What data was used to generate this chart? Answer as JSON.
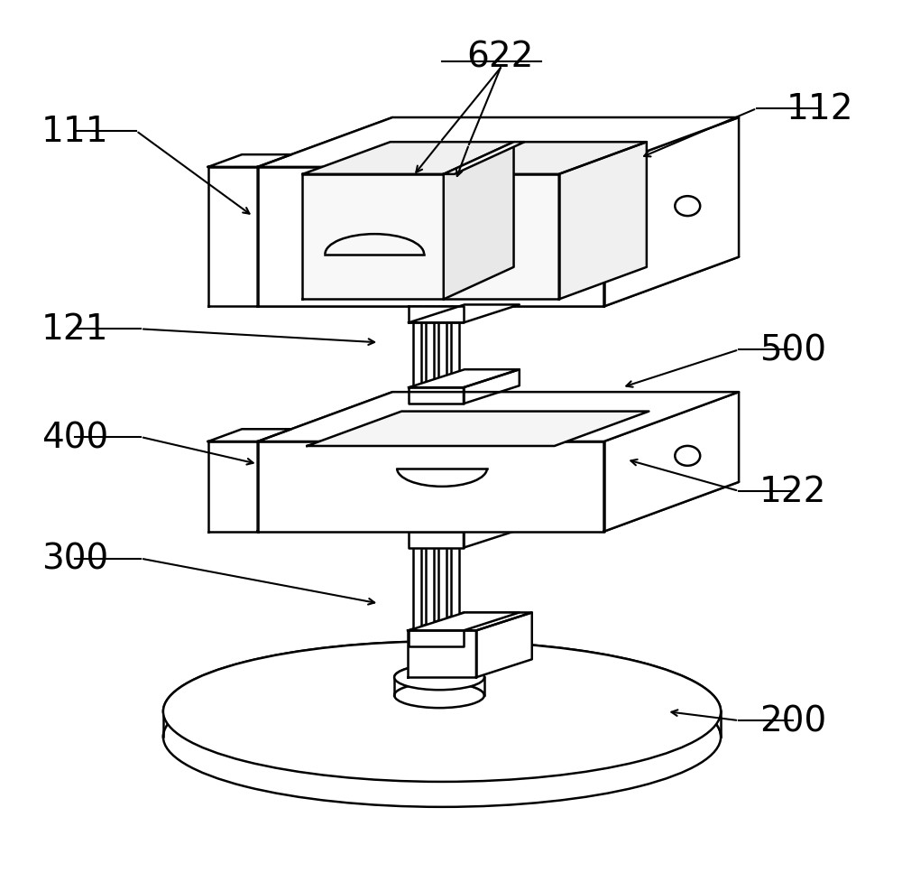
{
  "bg_color": "#ffffff",
  "line_color": "#000000",
  "line_width": 1.8,
  "figsize": [
    10.0,
    9.78
  ],
  "dpi": 100,
  "label_fontsize": 28
}
